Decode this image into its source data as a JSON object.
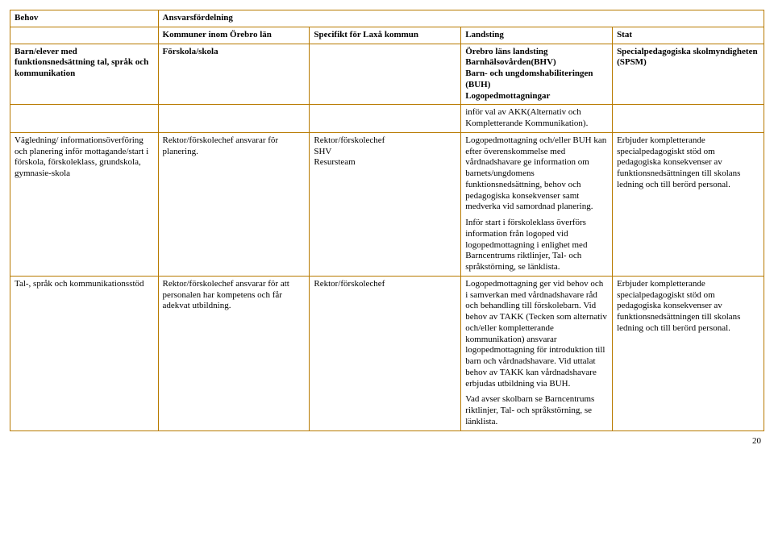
{
  "header": {
    "behov": "Behov",
    "ansvarsfordelning": "Ansvarsfördelning",
    "sub": {
      "kommuner": "Kommuner inom Örebro län",
      "specifikt": "Specifikt för Laxå kommun",
      "landsting": "Landsting",
      "stat": "Stat"
    }
  },
  "rows": {
    "r1": {
      "behov": "Barn/elever med funktionsnedsättning tal, språk och kommunikation",
      "kommuner": "Förskola/skola",
      "specifikt": "",
      "landsting": "Örebro läns landsting Barnhälsovården(BHV)\nBarn- och ungdomshabiliteringen (BUH)\nLogopedmottagningar",
      "stat": "Specialpedagogiska skolmyndigheten (SPSM)"
    },
    "r2": {
      "landsting": "inför val av AKK(Alternativ och Kompletterande Kommunikation)."
    },
    "r3": {
      "behov": "Vägledning/ informationsöverföring och planering inför mottagande/start i förskola, förskoleklass, grundskola, gymnasie-skola",
      "kommuner": "Rektor/förskolechef ansvarar för planering.",
      "specifikt": "Rektor/förskolechef\nSHV\nResursteam",
      "landsting_p1": "Logopedmottagning och/eller BUH kan efter överenskommelse med vårdnadshavare ge information om barnets/ungdomens funktionsnedsättning, behov och pedagogiska konsekvenser samt medverka vid samordnad planering.",
      "landsting_p2": "Inför start i förskoleklass överförs information från logoped vid logopedmottagning i enlighet med Barncentrums riktlinjer, Tal- och språkstörning, se länklista.",
      "stat": "Erbjuder kompletterande specialpedagogiskt stöd om pedagogiska konsekvenser av funktionsnedsättningen till skolans ledning och till berörd personal."
    },
    "r4": {
      "behov": "Tal-, språk och kommunikationsstöd",
      "kommuner": "Rektor/förskolechef ansvarar för att personalen har kompetens och får adekvat utbildning.",
      "specifikt": "Rektor/förskolechef",
      "landsting_p1": "Logopedmottagning ger vid behov och i samverkan med vårdnadshavare råd och behandling till förskolebarn. Vid behov av TAKK (Tecken som alternativ och/eller kompletterande kommunikation) ansvarar logopedmottagning för introduktion till barn och vårdnadshavare. Vid uttalat behov av TAKK kan vårdnadshavare erbjudas utbildning via BUH.",
      "landsting_p2": "Vad avser skolbarn se Barncentrums riktlinjer, Tal- och språkstörning, se länklista.",
      "stat": "Erbjuder kompletterande specialpedagogiskt stöd om pedagogiska konsekvenser av funktionsnedsättningen till skolans ledning och till berörd personal."
    }
  },
  "page_number": "20",
  "colors": {
    "border": "#b87a00",
    "text": "#000000",
    "background": "#ffffff"
  }
}
